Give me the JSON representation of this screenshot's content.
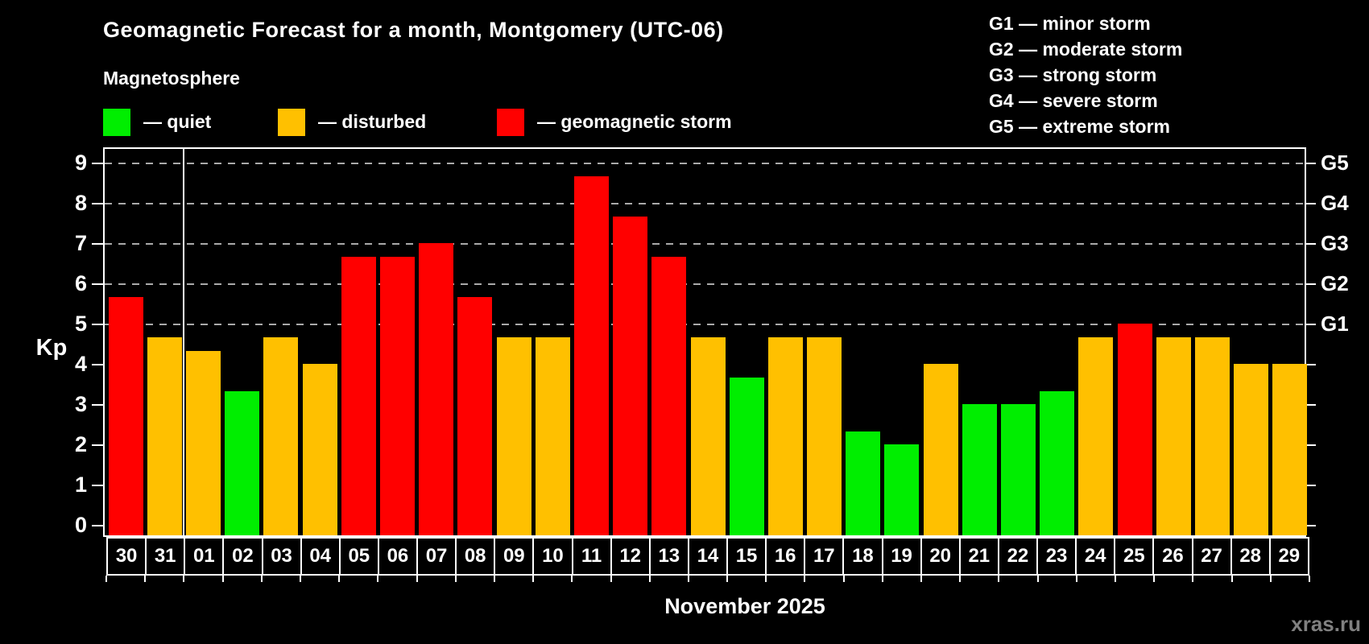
{
  "title": "Geomagnetic Forecast for a month, Montgomery (UTC-06)",
  "subtitle": "Magnetosphere",
  "watermark": "xras.ru",
  "colors": {
    "quiet": "#00ee00",
    "disturbed": "#ffc000",
    "storm": "#ff0000",
    "grid": "#aaaaaa",
    "frame": "#ffffff",
    "background": "#000000",
    "watermark": "#808080"
  },
  "legend": {
    "items": [
      {
        "label": "— quiet",
        "status": "quiet"
      },
      {
        "label": "— disturbed",
        "status": "disturbed"
      },
      {
        "label": "— geomagnetic storm",
        "status": "storm"
      }
    ]
  },
  "g_legend": {
    "items": [
      "G1 — minor storm",
      "G2 — moderate storm",
      "G3 — strong storm",
      "G4 — severe storm",
      "G5 — extreme storm"
    ]
  },
  "chart_data": {
    "type": "bar",
    "title": "Geomagnetic Forecast for a month, Montgomery (UTC-06)",
    "ylabel": "Kp",
    "xlabel": "November 2025",
    "ylim": [
      0,
      9.4
    ],
    "grid": "dashed horizontal at Kp 5-9",
    "y_ticks": [
      0,
      1,
      2,
      3,
      4,
      5,
      6,
      7,
      8,
      9
    ],
    "right_axis_labels": [
      {
        "value": 5,
        "label": "G1"
      },
      {
        "value": 6,
        "label": "G2"
      },
      {
        "value": 7,
        "label": "G3"
      },
      {
        "value": 8,
        "label": "G4"
      },
      {
        "value": 9,
        "label": "G5"
      }
    ],
    "month_separator_after_day": "31",
    "bars": [
      {
        "day": "30",
        "kp": 5.67,
        "status": "storm"
      },
      {
        "day": "31",
        "kp": 4.67,
        "status": "disturbed"
      },
      {
        "day": "01",
        "kp": 4.33,
        "status": "disturbed"
      },
      {
        "day": "02",
        "kp": 3.33,
        "status": "quiet"
      },
      {
        "day": "03",
        "kp": 4.67,
        "status": "disturbed"
      },
      {
        "day": "04",
        "kp": 4.0,
        "status": "disturbed"
      },
      {
        "day": "05",
        "kp": 6.67,
        "status": "storm"
      },
      {
        "day": "06",
        "kp": 6.67,
        "status": "storm"
      },
      {
        "day": "07",
        "kp": 7.0,
        "status": "storm"
      },
      {
        "day": "08",
        "kp": 5.67,
        "status": "storm"
      },
      {
        "day": "09",
        "kp": 4.67,
        "status": "disturbed"
      },
      {
        "day": "10",
        "kp": 4.67,
        "status": "disturbed"
      },
      {
        "day": "11",
        "kp": 8.67,
        "status": "storm"
      },
      {
        "day": "12",
        "kp": 7.67,
        "status": "storm"
      },
      {
        "day": "13",
        "kp": 6.67,
        "status": "storm"
      },
      {
        "day": "14",
        "kp": 4.67,
        "status": "disturbed"
      },
      {
        "day": "15",
        "kp": 3.67,
        "status": "quiet"
      },
      {
        "day": "16",
        "kp": 4.67,
        "status": "disturbed"
      },
      {
        "day": "17",
        "kp": 4.67,
        "status": "disturbed"
      },
      {
        "day": "18",
        "kp": 2.33,
        "status": "quiet"
      },
      {
        "day": "19",
        "kp": 2.0,
        "status": "quiet"
      },
      {
        "day": "20",
        "kp": 4.0,
        "status": "disturbed"
      },
      {
        "day": "21",
        "kp": 3.0,
        "status": "quiet"
      },
      {
        "day": "22",
        "kp": 3.0,
        "status": "quiet"
      },
      {
        "day": "23",
        "kp": 3.33,
        "status": "quiet"
      },
      {
        "day": "24",
        "kp": 4.67,
        "status": "disturbed"
      },
      {
        "day": "25",
        "kp": 5.0,
        "status": "storm"
      },
      {
        "day": "26",
        "kp": 4.67,
        "status": "disturbed"
      },
      {
        "day": "27",
        "kp": 4.67,
        "status": "disturbed"
      },
      {
        "day": "28",
        "kp": 4.0,
        "status": "disturbed"
      },
      {
        "day": "29",
        "kp": 4.0,
        "status": "disturbed"
      }
    ]
  }
}
